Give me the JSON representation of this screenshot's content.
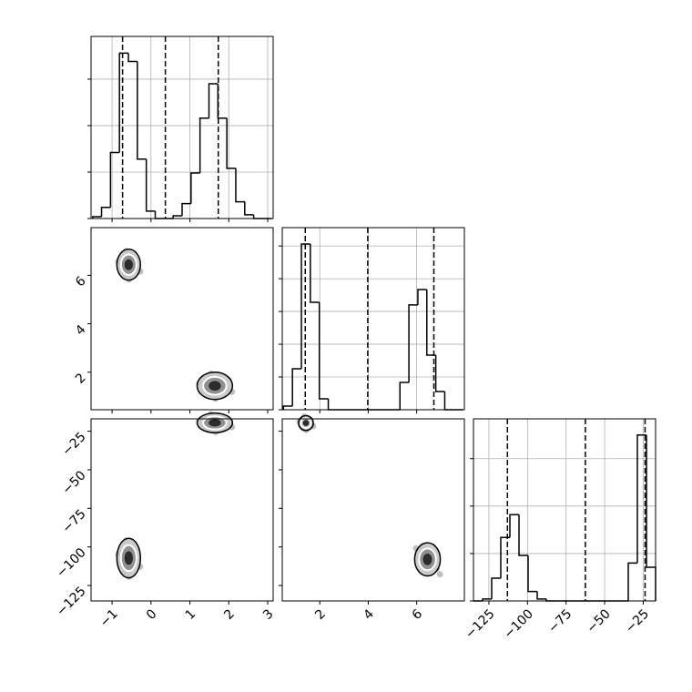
{
  "chart_data": [
    {
      "type": "histogram",
      "color": "#000000",
      "grid": true,
      "xtick_labels": false,
      "bins": [
        -1.5,
        -1.27,
        -1.04,
        -0.81,
        -0.58,
        -0.35,
        -0.12,
        0.11,
        0.34,
        0.57,
        0.8,
        1.03,
        1.26,
        1.49,
        1.72,
        1.95,
        2.18,
        2.41,
        2.64,
        2.87,
        3.1
      ],
      "values": [
        20,
        120,
        710,
        1780,
        1690,
        640,
        80,
        0,
        0,
        30,
        160,
        490,
        1080,
        1450,
        1080,
        540,
        180,
        40,
        0,
        0
      ],
      "quantiles": [
        -0.73,
        0.37,
        1.73
      ],
      "xlim": [
        -1.54,
        3.14
      ],
      "xticks": [
        {
          "value": -1,
          "label": "−1"
        },
        0,
        1,
        2,
        3
      ],
      "ylim": [
        0,
        1960
      ],
      "yticks": [
        0,
        500,
        1000,
        1500
      ]
    },
    {
      "type": "scatter",
      "color": "#000000",
      "xtick_labels": false,
      "ytick_labels": true,
      "x": [
        -0.6,
        -0.44,
        -0.76,
        -0.52,
        -0.68,
        -0.36,
        -0.84,
        -0.56,
        -0.64,
        -0.48,
        -0.72,
        -0.28,
        1.6,
        1.84,
        1.36,
        1.72,
        1.48,
        1.96,
        1.24,
        1.66,
        1.54,
        1.78,
        1.42,
        2.08
      ],
      "y": [
        6.4,
        6.52,
        6.2,
        6.84,
        6.0,
        6.32,
        6.56,
        5.84,
        7.0,
        6.76,
        6.68,
        6.16,
        1.4,
        1.51,
        1.23,
        1.79,
        1.05,
        1.33,
        1.54,
        0.91,
        1.93,
        1.72,
        1.65,
        1.19
      ],
      "xlim": [
        -1.54,
        3.14
      ],
      "xticks": [
        {
          "value": -1,
          "label": "−1"
        },
        0,
        1,
        2,
        3
      ],
      "ylim": [
        0.45,
        7.97
      ],
      "yticks": [
        2,
        4,
        6
      ]
    },
    {
      "type": "histogram",
      "color": "#000000",
      "grid": true,
      "xtick_labels": false,
      "bins": [
        0.5,
        0.87,
        1.24,
        1.61,
        1.98,
        2.35,
        2.72,
        3.09,
        3.46,
        3.83,
        4.2,
        4.57,
        4.94,
        5.31,
        5.68,
        6.05,
        6.42,
        6.79,
        7.16,
        7.53,
        7.9
      ],
      "values": [
        56,
        625,
        2530,
        1640,
        167,
        0,
        0,
        0,
        0,
        0,
        0,
        0,
        0,
        417,
        1600,
        1835,
        834,
        278,
        0,
        0
      ],
      "quantiles": [
        1.4,
        3.98,
        6.71
      ],
      "xlim": [
        0.45,
        7.97
      ],
      "xticks": [
        2,
        4,
        6
      ],
      "ylim": [
        0,
        2780
      ],
      "yticks": [
        0,
        500,
        1000,
        1500,
        2000,
        2500
      ]
    },
    {
      "type": "scatter",
      "color": "#000000",
      "xtick_labels": true,
      "ytick_labels": true,
      "x": [
        -0.6,
        -0.44,
        -0.76,
        -0.52,
        -0.68,
        -0.36,
        -0.84,
        -0.56,
        -0.64,
        -0.48,
        -0.72,
        -0.28,
        1.6,
        1.84,
        1.36,
        1.72,
        1.48,
        1.96,
        1.24,
        1.66,
        1.54,
        1.78,
        1.42,
        2.08
      ],
      "y": [
        -108,
        -105.6,
        -112,
        -99.2,
        -116,
        -109.6,
        -104.8,
        -119.2,
        -96,
        -100.8,
        -102.4,
        -112.8,
        -20,
        -18.8,
        -22,
        -15.6,
        -24,
        -20.8,
        -18.4,
        -25.6,
        -14,
        -16.4,
        -17.2,
        -22.4
      ],
      "xlim": [
        -1.54,
        3.14
      ],
      "xticks": [
        {
          "value": -1,
          "label": "−1"
        },
        0,
        1,
        2,
        3
      ],
      "ylim": [
        -135,
        -17
      ],
      "yticks": [
        {
          "value": -125,
          "label": "−125"
        },
        {
          "value": -100,
          "label": "−100"
        },
        {
          "value": -75,
          "label": "−75"
        },
        {
          "value": -50,
          "label": "−50"
        },
        {
          "value": -25,
          "label": "−25"
        }
      ]
    },
    {
      "type": "scatter",
      "color": "#000000",
      "xtick_labels": true,
      "ytick_labels": false,
      "x": [
        1.4,
        1.56,
        1.24,
        1.48,
        1.32,
        1.64,
        1.16,
        1.44,
        1.36,
        1.52,
        1.28,
        1.72,
        6.4,
        6.68,
        6.12,
        6.54,
        6.26,
        6.82,
        5.98,
        6.47,
        6.33,
        6.61,
        6.19,
        6.96
      ],
      "y": [
        -20,
        -19.1,
        -21.5,
        -16.7,
        -23,
        -20.6,
        -18.8,
        -24.2,
        -15.5,
        -17.3,
        -17.9,
        -21.8,
        -108,
        -109.86,
        -107.14,
        -104.18,
        -111.32,
        -114.04,
        -100.96,
        -115.84,
        -99.66,
        -106.02,
        -101.98,
        -117.72
      ],
      "xlim": [
        0.45,
        7.97
      ],
      "xticks": [
        2,
        4,
        6
      ],
      "ylim": [
        -135,
        -17
      ],
      "yticks": [
        {
          "value": -125,
          "label": "−125"
        },
        {
          "value": -100,
          "label": "−100"
        },
        {
          "value": -75,
          "label": "−75"
        },
        {
          "value": -50,
          "label": "−50"
        },
        {
          "value": -25,
          "label": "−25"
        }
      ]
    },
    {
      "type": "histogram",
      "color": "#000000",
      "grid": true,
      "xtick_labels": true,
      "bins": [
        -135,
        -129.1,
        -123.2,
        -117.3,
        -111.4,
        -105.5,
        -99.6,
        -93.7,
        -87.8,
        -81.9,
        -76,
        -70.1,
        -64.2,
        -58.3,
        -52.4,
        -46.5,
        -40.6,
        -34.7,
        -28.8,
        -22.9,
        -17
      ],
      "values": [
        0,
        20,
        240,
        670,
        910,
        480,
        100,
        20,
        0,
        0,
        0,
        0,
        0,
        0,
        0,
        0,
        0,
        400,
        1750,
        355
      ],
      "quantiles": [
        -113,
        -62.5,
        -23.8
      ],
      "xlim": [
        -135,
        -17
      ],
      "xticks": [
        {
          "value": -125,
          "label": "−125"
        },
        {
          "value": -100,
          "label": "−100"
        },
        {
          "value": -75,
          "label": "−75"
        },
        {
          "value": -50,
          "label": "−50"
        },
        {
          "value": -25,
          "label": "−25"
        }
      ],
      "ylim": [
        0,
        1920
      ],
      "yticks": [
        0,
        500,
        1000,
        1500
      ]
    }
  ]
}
